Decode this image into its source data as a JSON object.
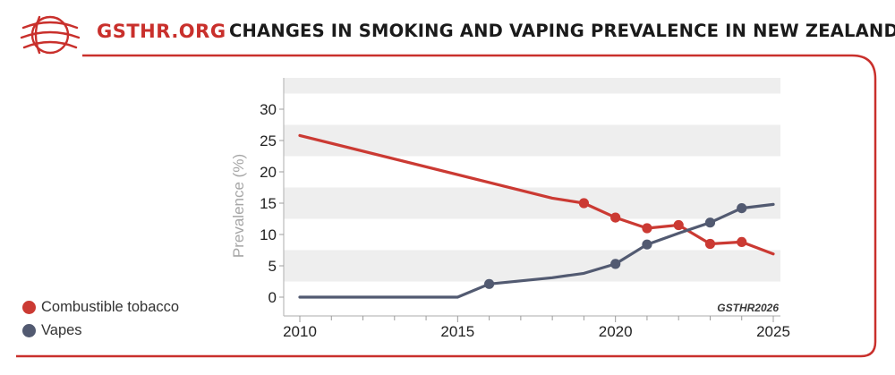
{
  "header": {
    "brand": "GSTHR.ORG",
    "title": "CHANGES IN SMOKING AND VAPING PREVALENCE IN NEW ZEALAND"
  },
  "colors": {
    "accent": "#c9302c",
    "combustible": "#cb3a33",
    "vapes": "#525a71",
    "band": "#eeeeee",
    "axis_label": "#a6a6a6"
  },
  "chart_data": {
    "type": "line",
    "title": "CHANGES IN SMOKING AND VAPING PREVALENCE IN NEW ZEALAND",
    "xlabel": "",
    "ylabel": "Prevalence (%)",
    "xlim": [
      2010,
      2025
    ],
    "ylim": [
      -3,
      35
    ],
    "x_ticks": [
      "2010",
      "2015",
      "2020",
      "2025"
    ],
    "y_ticks": [
      "0",
      "5",
      "10",
      "15",
      "20",
      "25",
      "30"
    ],
    "grid": "alternating horizontal bands",
    "legend_position": "bottom-left",
    "watermark": "GSTHR2026",
    "series": [
      {
        "name": "Combustible tobacco",
        "color": "#cb3a33",
        "points": [
          {
            "x": 2010,
            "y": 25.8,
            "marker": false
          },
          {
            "x": 2018,
            "y": 15.8,
            "marker": false
          },
          {
            "x": 2019,
            "y": 15.0,
            "marker": true
          },
          {
            "x": 2020,
            "y": 12.7,
            "marker": true
          },
          {
            "x": 2021,
            "y": 11.0,
            "marker": true
          },
          {
            "x": 2022,
            "y": 11.5,
            "marker": true
          },
          {
            "x": 2023,
            "y": 8.5,
            "marker": true
          },
          {
            "x": 2024,
            "y": 8.8,
            "marker": true
          },
          {
            "x": 2025,
            "y": 6.9,
            "marker": false
          }
        ]
      },
      {
        "name": "Vapes",
        "color": "#525a71",
        "points": [
          {
            "x": 2010,
            "y": 0,
            "marker": false
          },
          {
            "x": 2015,
            "y": 0,
            "marker": false
          },
          {
            "x": 2016,
            "y": 2.1,
            "marker": true
          },
          {
            "x": 2017,
            "y": 2.6,
            "marker": false
          },
          {
            "x": 2018,
            "y": 3.1,
            "marker": false
          },
          {
            "x": 2019,
            "y": 3.8,
            "marker": false
          },
          {
            "x": 2020,
            "y": 5.3,
            "marker": true
          },
          {
            "x": 2021,
            "y": 8.4,
            "marker": true
          },
          {
            "x": 2022,
            "y": 10.2,
            "marker": false
          },
          {
            "x": 2023,
            "y": 11.9,
            "marker": true
          },
          {
            "x": 2024,
            "y": 14.2,
            "marker": true
          },
          {
            "x": 2025,
            "y": 14.8,
            "marker": false
          }
        ]
      }
    ]
  }
}
